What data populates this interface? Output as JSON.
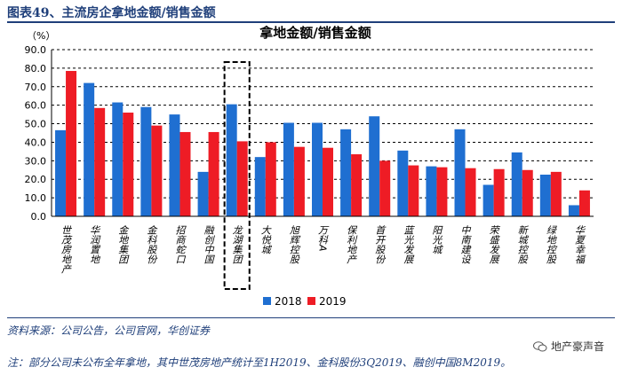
{
  "figure": {
    "title": "图表49、主流房企拿地金额/销售金额",
    "source": "资料来源：公司公告，公司官网，华创证券",
    "note": "注：部分公司未公布全年拿地，其中世茂房地产统计至1H2019、金科股份3Q2019、融创中国8M2019。",
    "watermark": "地产豪声音"
  },
  "colors": {
    "s2018": "#1f6fd1",
    "s2019": "#ee1c25",
    "highlight": "#000000",
    "grid": "#000000"
  },
  "chart_data": {
    "type": "bar",
    "title": "拿地金额/销售金额",
    "ylabel": "（%）",
    "ylim": [
      0,
      90
    ],
    "yticks": [
      "0.0",
      "10.0",
      "20.0",
      "30.0",
      "40.0",
      "50.0",
      "60.0",
      "70.0",
      "80.0",
      "90.0"
    ],
    "categories": [
      "世茂房地产",
      "华润置地",
      "金地集团",
      "金科股份",
      "招商蛇口",
      "融创中国",
      "龙湖集团",
      "大悦城",
      "旭辉控股",
      "万科A",
      "保利地产",
      "首开股份",
      "蓝光发展",
      "阳光城",
      "中南建设",
      "荣盛发展",
      "新城控股",
      "绿地控股",
      "华夏幸福"
    ],
    "highlight": "龙湖集团",
    "series": [
      {
        "name": "2018",
        "values": [
          46.5,
          72,
          61.5,
          59,
          55,
          24,
          60.5,
          32,
          50.5,
          50.5,
          47,
          54,
          35.5,
          27,
          47,
          17,
          34.5,
          22.5,
          6
        ]
      },
      {
        "name": "2019",
        "values": [
          78.5,
          58.5,
          56,
          49,
          45.5,
          45.5,
          40.5,
          40,
          37.5,
          37,
          33.5,
          30,
          27.5,
          26.5,
          26,
          25.5,
          25,
          24,
          14
        ]
      }
    ],
    "legend": {
      "position": "bottom",
      "labels": [
        "2018",
        "2019"
      ]
    }
  }
}
